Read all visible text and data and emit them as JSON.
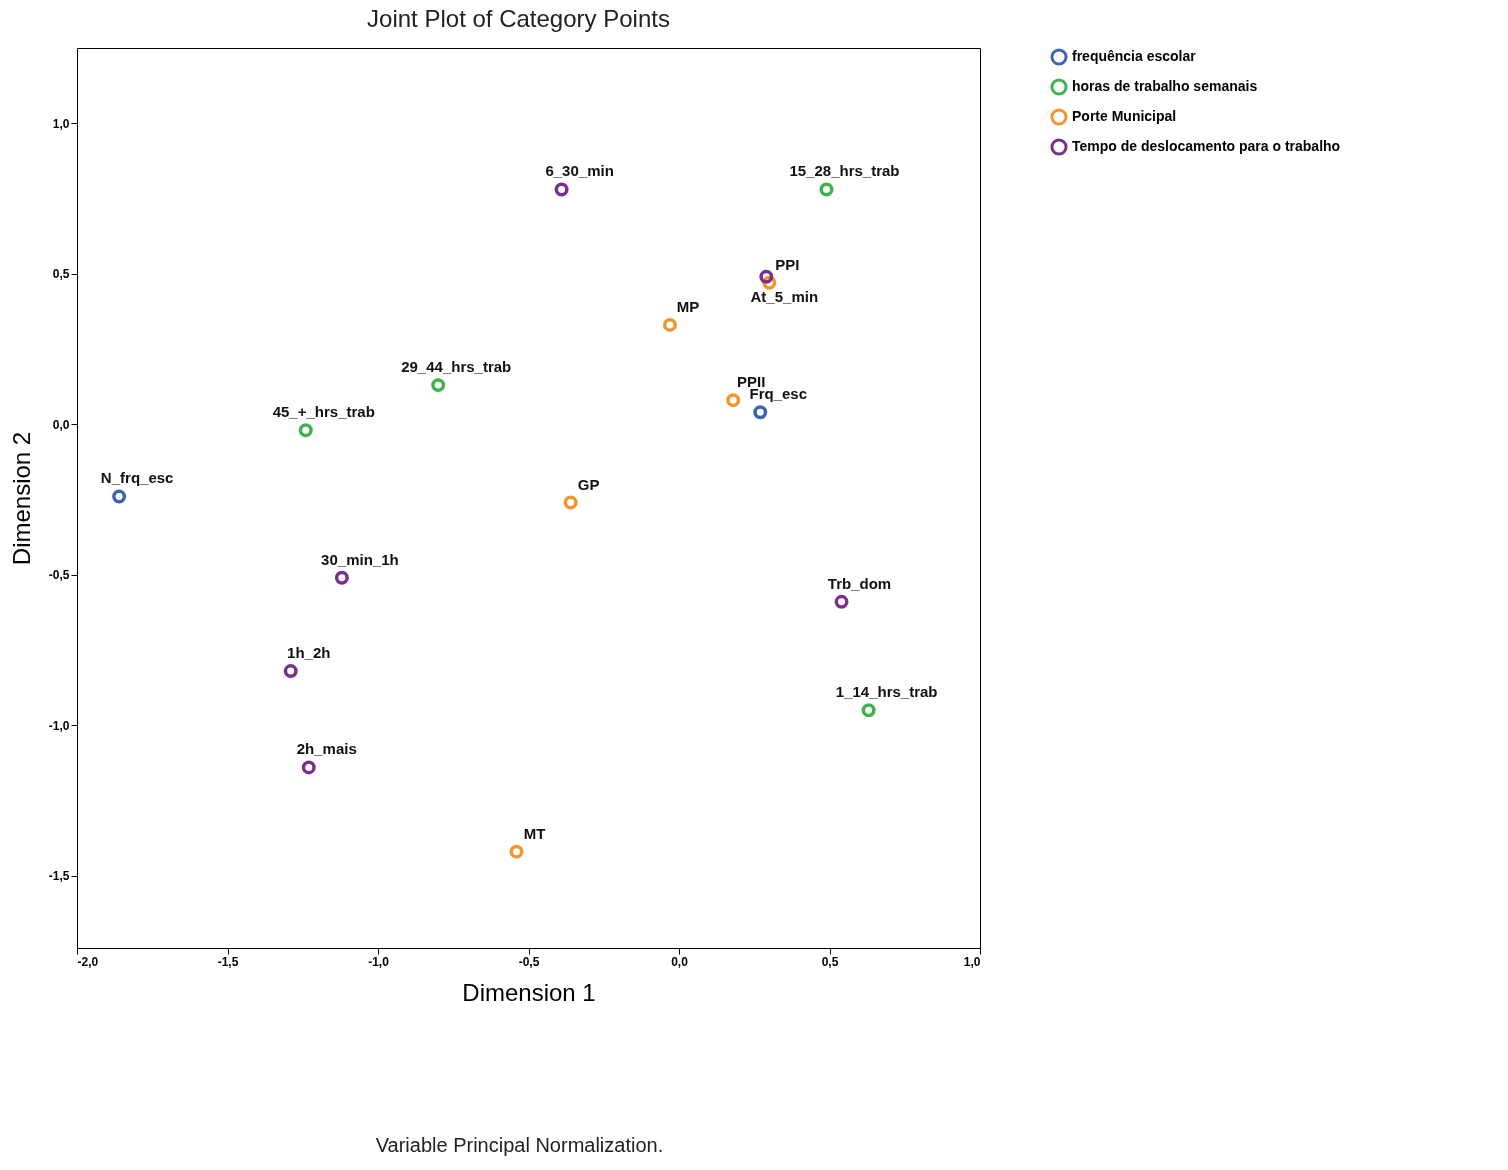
{
  "chart_data": {
    "type": "scatter",
    "title": "Joint Plot of Category Points",
    "xlabel": "Dimension 1",
    "ylabel": "Dimension 2",
    "xlim": [
      -2.0,
      1.0
    ],
    "ylim": [
      -1.74,
      1.25
    ],
    "xticks": [
      {
        "value": -2,
        "label": "-2,0"
      },
      {
        "value": -1.5,
        "label": "-1,5"
      },
      {
        "value": -1,
        "label": "-1,0"
      },
      {
        "value": -0.5,
        "label": "-0,5"
      },
      {
        "value": 0,
        "label": "0,0"
      },
      {
        "value": 0.5,
        "label": "0,5"
      },
      {
        "value": 1,
        "label": "1,0"
      }
    ],
    "yticks": [
      {
        "value": -1.5,
        "label": "-1,5"
      },
      {
        "value": -1,
        "label": "-1,0"
      },
      {
        "value": -0.5,
        "label": "-0,5"
      },
      {
        "value": 0,
        "label": "0,0"
      },
      {
        "value": 0.5,
        "label": "0,5"
      },
      {
        "value": 1,
        "label": "1,0"
      }
    ],
    "marker": "circle",
    "legend": "top right",
    "series": [
      {
        "name": "frequência escolar",
        "color": "#3c64b1",
        "x": [
          0.27,
          -1.86
        ],
        "values": [
          0.04,
          -0.24
        ]
      },
      {
        "name": "horas de trabalho semanais",
        "color": "#3cb44b",
        "x": [
          0.49,
          -0.8,
          -1.24,
          0.63
        ],
        "values": [
          0.78,
          0.13,
          -0.02,
          -0.95
        ]
      },
      {
        "name": "Porte Municipal",
        "color": "#f0962d",
        "x": [
          -0.03,
          0.18,
          -0.36,
          -0.54,
          0.3
        ],
        "values": [
          0.33,
          0.08,
          -0.26,
          -1.42,
          0.47
        ]
      },
      {
        "name": "Tempo de deslocamento para o trabalho",
        "color": "#7b2f8c",
        "x": [
          -0.39,
          0.29,
          -1.12,
          0.54,
          -1.29,
          -1.23
        ],
        "values": [
          0.78,
          0.49,
          -0.51,
          -0.59,
          -0.82,
          -1.14
        ]
      }
    ],
    "annotations": [
      {
        "text": "Frq_esc",
        "x": 0.27,
        "y": 0.04
      },
      {
        "text": "N_frq_esc",
        "x": -1.86,
        "y": -0.24
      },
      {
        "text": "15_28_hrs_trab",
        "x": 0.49,
        "y": 0.78
      },
      {
        "text": "29_44_hrs_trab",
        "x": -0.8,
        "y": 0.13
      },
      {
        "text": "45_+_hrs_trab",
        "x": -1.24,
        "y": -0.02
      },
      {
        "text": "1_14_hrs_trab",
        "x": 0.63,
        "y": -0.95
      },
      {
        "text": "MP",
        "x": -0.03,
        "y": 0.33
      },
      {
        "text": "PPII",
        "x": 0.18,
        "y": 0.08
      },
      {
        "text": "GP",
        "x": -0.36,
        "y": -0.26
      },
      {
        "text": "MT",
        "x": -0.54,
        "y": -1.42
      },
      {
        "text": "PPI",
        "x": 0.3,
        "y": 0.47
      },
      {
        "text": "6_30_min",
        "x": -0.39,
        "y": 0.78
      },
      {
        "text": "At_5_min",
        "x": 0.29,
        "y": 0.49
      },
      {
        "text": "30_min_1h",
        "x": -1.12,
        "y": -0.51
      },
      {
        "text": "Trb_dom",
        "x": 0.54,
        "y": -0.59
      },
      {
        "text": "1h_2h",
        "x": -1.29,
        "y": -0.82
      },
      {
        "text": "2h_mais",
        "x": -1.23,
        "y": -1.14
      },
      "Variable Principal Normalization."
    ]
  }
}
